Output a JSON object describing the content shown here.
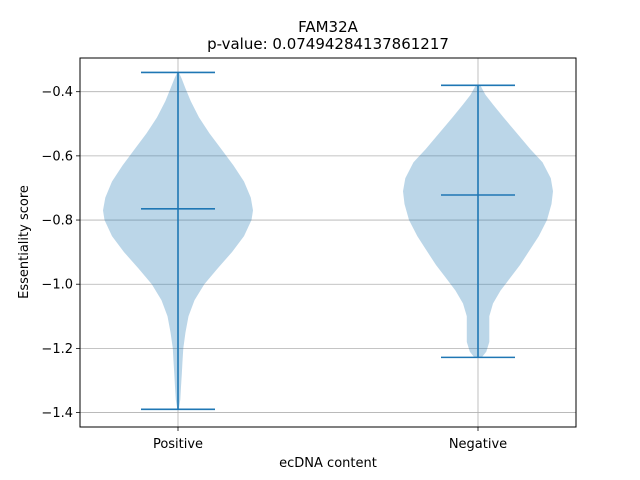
{
  "chart_data": {
    "type": "violin",
    "title": "FAM32A",
    "subtitle": "p-value: 0.07494284137861217",
    "xlabel": "ecDNA content",
    "ylabel": "Essentiality score",
    "categories": [
      "Positive",
      "Negative"
    ],
    "ylim": [
      -1.445,
      -0.295
    ],
    "yticks": [
      -1.4,
      -1.2,
      -1.0,
      -0.8,
      -0.6,
      -0.4
    ],
    "ytick_labels": [
      "−1.4",
      "−1.2",
      "−1.0",
      "−0.8",
      "−0.6",
      "−0.4"
    ],
    "grid": true,
    "colors": {
      "body": "#1f77b4",
      "body_alpha": 0.3,
      "lines": "#1f77b4",
      "grid": "#b0b0b0"
    },
    "violins": [
      {
        "category": "Positive",
        "min": -1.39,
        "max": -0.34,
        "median": -0.765,
        "profile": [
          [
            -1.39,
            0.01
          ],
          [
            -1.36,
            0.03
          ],
          [
            -1.32,
            0.04
          ],
          [
            -1.28,
            0.05
          ],
          [
            -1.24,
            0.06
          ],
          [
            -1.2,
            0.07
          ],
          [
            -1.15,
            0.1
          ],
          [
            -1.1,
            0.14
          ],
          [
            -1.05,
            0.22
          ],
          [
            -1.0,
            0.35
          ],
          [
            -0.95,
            0.53
          ],
          [
            -0.9,
            0.72
          ],
          [
            -0.85,
            0.88
          ],
          [
            -0.8,
            0.98
          ],
          [
            -0.77,
            1.0
          ],
          [
            -0.73,
            0.97
          ],
          [
            -0.68,
            0.88
          ],
          [
            -0.63,
            0.74
          ],
          [
            -0.58,
            0.58
          ],
          [
            -0.53,
            0.42
          ],
          [
            -0.48,
            0.28
          ],
          [
            -0.43,
            0.17
          ],
          [
            -0.39,
            0.1
          ],
          [
            -0.36,
            0.05
          ],
          [
            -0.34,
            0.01
          ]
        ]
      },
      {
        "category": "Negative",
        "min": -1.228,
        "max": -0.38,
        "median": -0.722,
        "profile": [
          [
            -1.228,
            0.05
          ],
          [
            -1.21,
            0.11
          ],
          [
            -1.18,
            0.15
          ],
          [
            -1.14,
            0.15
          ],
          [
            -1.1,
            0.15
          ],
          [
            -1.06,
            0.2
          ],
          [
            -1.02,
            0.3
          ],
          [
            -0.98,
            0.43
          ],
          [
            -0.94,
            0.56
          ],
          [
            -0.89,
            0.7
          ],
          [
            -0.85,
            0.81
          ],
          [
            -0.8,
            0.92
          ],
          [
            -0.75,
            0.98
          ],
          [
            -0.71,
            1.0
          ],
          [
            -0.67,
            0.97
          ],
          [
            -0.62,
            0.86
          ],
          [
            -0.58,
            0.7
          ],
          [
            -0.53,
            0.52
          ],
          [
            -0.48,
            0.34
          ],
          [
            -0.44,
            0.2
          ],
          [
            -0.41,
            0.1
          ],
          [
            -0.38,
            0.03
          ]
        ]
      }
    ]
  }
}
